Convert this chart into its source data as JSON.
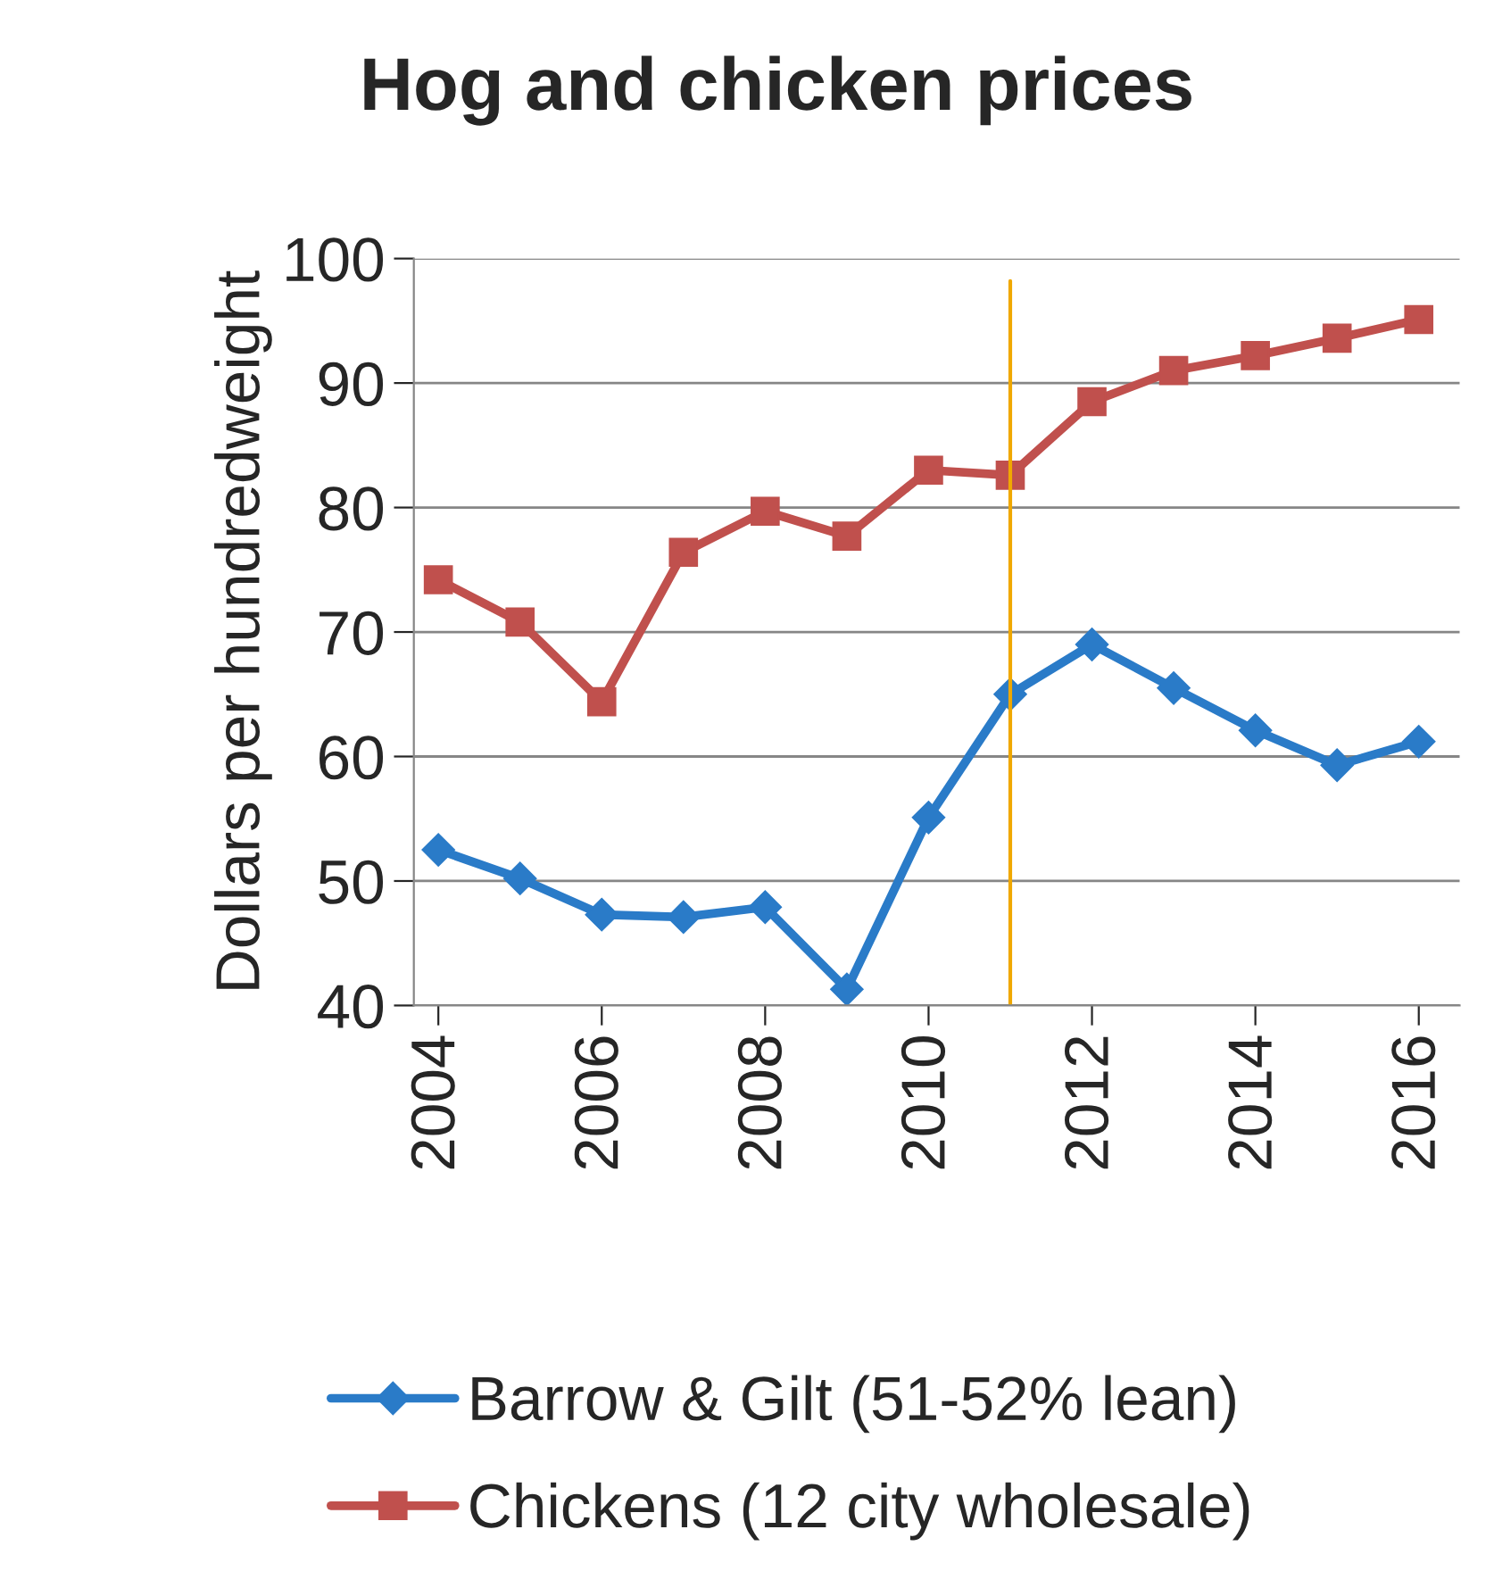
{
  "chart_data": {
    "type": "line",
    "title": "Hog and chicken prices",
    "ylabel": "Dollars per hundredweight",
    "x": [
      2004,
      2005,
      2006,
      2007,
      2008,
      2009,
      2010,
      2011,
      2012,
      2013,
      2014,
      2015,
      2016
    ],
    "series": [
      {
        "name": "Barrow & Gilt (51-52% lean)",
        "color": "#2a7bc8",
        "marker": "diamond",
        "values": [
          52.5,
          50.2,
          47.3,
          47.1,
          47.9,
          41.3,
          55.1,
          65.0,
          69.0,
          65.5,
          62.1,
          59.3,
          61.2
        ]
      },
      {
        "name": "Chickens (12 city wholesale)",
        "color": "#c0504d",
        "marker": "square",
        "values": [
          74.2,
          70.8,
          64.4,
          76.4,
          79.7,
          77.7,
          83.0,
          82.6,
          88.5,
          91.0,
          92.2,
          93.6,
          95.1
        ]
      }
    ],
    "xlim": [
      2003.7,
      2016.5
    ],
    "xticks": [
      2004,
      2006,
      2008,
      2010,
      2012,
      2014,
      2016
    ],
    "ylim": [
      40,
      100
    ],
    "yticks": [
      40,
      50,
      60,
      70,
      80,
      90,
      100
    ],
    "ref_lines": [
      {
        "axis": "x",
        "value": 2011,
        "color": "#f0a800"
      }
    ],
    "grid": "y",
    "legend": "bottom",
    "line_style": "solid"
  }
}
